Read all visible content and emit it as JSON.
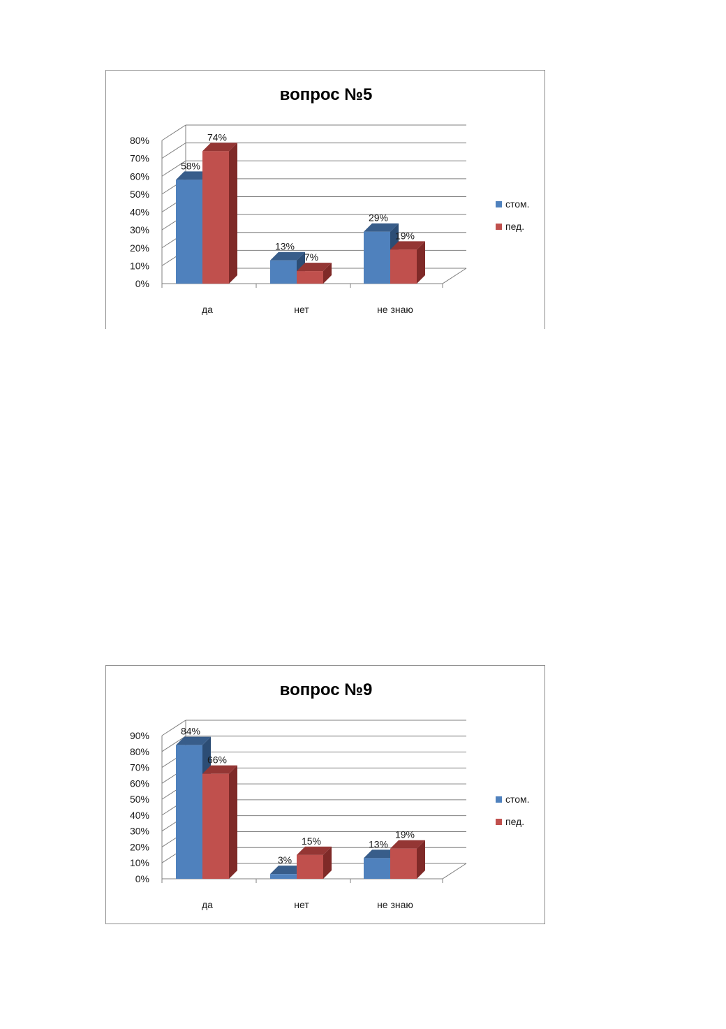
{
  "colors": {
    "series_1_front": "#4f81bd",
    "series_1_top": "#385d8a",
    "series_1_side": "#2c4d75",
    "series_2_front": "#c0504d",
    "series_2_top": "#943634",
    "series_2_side": "#7f2a28",
    "grid": "#7f7f7f",
    "axis": "#7f7f7f"
  },
  "chart_data": [
    {
      "type": "bar",
      "title": "вопрос №5",
      "categories": [
        "да",
        "нет",
        "не знаю"
      ],
      "series": [
        {
          "name": "стом.",
          "values": [
            58,
            13,
            29
          ],
          "labels": [
            "58%",
            "13%",
            "29%"
          ]
        },
        {
          "name": "пед.",
          "values": [
            74,
            7,
            19
          ],
          "labels": [
            "74%",
            "7%",
            "19%"
          ]
        }
      ],
      "ylim": [
        0,
        80
      ],
      "yticks": [
        "0%",
        "10%",
        "20%",
        "30%",
        "40%",
        "50%",
        "60%",
        "70%",
        "80%"
      ],
      "grid": true,
      "legend_position": "right",
      "style": "3d-clustered-column"
    },
    {
      "type": "bar",
      "title": "вопрос №9",
      "categories": [
        "да",
        "нет",
        "не знаю"
      ],
      "series": [
        {
          "name": "стом.",
          "values": [
            84,
            3,
            13
          ],
          "labels": [
            "84%",
            "3%",
            "13%"
          ]
        },
        {
          "name": "пед.",
          "values": [
            66,
            15,
            19
          ],
          "labels": [
            "66%",
            "15%",
            "19%"
          ]
        }
      ],
      "ylim": [
        0,
        90
      ],
      "yticks": [
        "0%",
        "10%",
        "20%",
        "30%",
        "40%",
        "50%",
        "60%",
        "70%",
        "80%",
        "90%"
      ],
      "grid": true,
      "legend_position": "right",
      "style": "3d-clustered-column"
    }
  ]
}
